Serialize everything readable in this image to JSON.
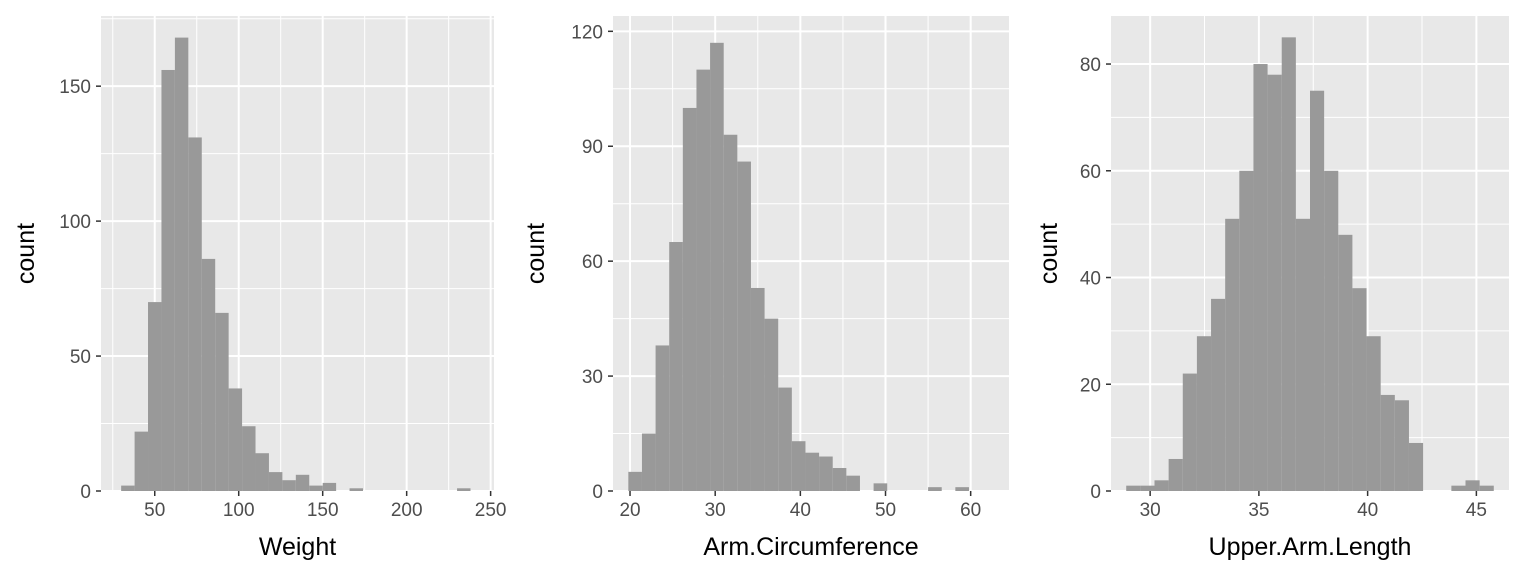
{
  "colors": {
    "panel_background": "#e8e8e8",
    "grid_line": "#ffffff",
    "bar_fill": "#999999",
    "tick_text": "#4d4d4d",
    "axis_title": "#000000"
  },
  "chart_data": [
    {
      "type": "bar",
      "xlabel": "Weight",
      "ylabel": "count",
      "xlim": [
        18,
        252
      ],
      "ylim": [
        0,
        176
      ],
      "xticks": [
        50,
        100,
        150,
        200,
        250
      ],
      "yticks": [
        0,
        50,
        100,
        150
      ],
      "grid": true,
      "bins": [
        {
          "x0": 30,
          "x1": 38,
          "count": 2
        },
        {
          "x0": 38,
          "x1": 46,
          "count": 22
        },
        {
          "x0": 46,
          "x1": 54,
          "count": 70
        },
        {
          "x0": 54,
          "x1": 62,
          "count": 156
        },
        {
          "x0": 62,
          "x1": 70,
          "count": 168
        },
        {
          "x0": 70,
          "x1": 78,
          "count": 131
        },
        {
          "x0": 78,
          "x1": 86,
          "count": 86
        },
        {
          "x0": 86,
          "x1": 94,
          "count": 66
        },
        {
          "x0": 94,
          "x1": 102,
          "count": 38
        },
        {
          "x0": 102,
          "x1": 110,
          "count": 24
        },
        {
          "x0": 110,
          "x1": 118,
          "count": 14
        },
        {
          "x0": 118,
          "x1": 126,
          "count": 7
        },
        {
          "x0": 126,
          "x1": 134,
          "count": 4
        },
        {
          "x0": 134,
          "x1": 142,
          "count": 6
        },
        {
          "x0": 142,
          "x1": 150,
          "count": 2
        },
        {
          "x0": 150,
          "x1": 158,
          "count": 3
        },
        {
          "x0": 166,
          "x1": 174,
          "count": 1
        },
        {
          "x0": 230,
          "x1": 238,
          "count": 1
        }
      ]
    },
    {
      "type": "bar",
      "xlabel": "Arm.Circumference",
      "ylabel": "count",
      "xlim": [
        18,
        64.5
      ],
      "ylim": [
        0,
        124
      ],
      "xticks": [
        20,
        30,
        40,
        50,
        60
      ],
      "yticks": [
        0,
        30,
        60,
        90,
        120
      ],
      "grid": true,
      "bins": [
        {
          "x0": 19.8,
          "x1": 21.4,
          "count": 5
        },
        {
          "x0": 21.4,
          "x1": 23.0,
          "count": 15
        },
        {
          "x0": 23.0,
          "x1": 24.6,
          "count": 38
        },
        {
          "x0": 24.6,
          "x1": 26.2,
          "count": 65
        },
        {
          "x0": 26.2,
          "x1": 27.8,
          "count": 100
        },
        {
          "x0": 27.8,
          "x1": 29.4,
          "count": 110
        },
        {
          "x0": 29.4,
          "x1": 31.0,
          "count": 117
        },
        {
          "x0": 31.0,
          "x1": 32.6,
          "count": 93
        },
        {
          "x0": 32.6,
          "x1": 34.2,
          "count": 86
        },
        {
          "x0": 34.2,
          "x1": 35.8,
          "count": 53
        },
        {
          "x0": 35.8,
          "x1": 37.4,
          "count": 45
        },
        {
          "x0": 37.4,
          "x1": 39.0,
          "count": 27
        },
        {
          "x0": 39.0,
          "x1": 40.6,
          "count": 13
        },
        {
          "x0": 40.6,
          "x1": 42.2,
          "count": 10
        },
        {
          "x0": 42.2,
          "x1": 43.8,
          "count": 9
        },
        {
          "x0": 43.8,
          "x1": 45.4,
          "count": 6
        },
        {
          "x0": 45.4,
          "x1": 47.0,
          "count": 4
        },
        {
          "x0": 48.6,
          "x1": 50.2,
          "count": 2
        },
        {
          "x0": 55.0,
          "x1": 56.6,
          "count": 1
        },
        {
          "x0": 58.2,
          "x1": 59.8,
          "count": 1
        }
      ]
    },
    {
      "type": "bar",
      "xlabel": "Upper.Arm.Length",
      "ylabel": "count",
      "xlim": [
        28.2,
        46.5
      ],
      "ylim": [
        0,
        89
      ],
      "xticks": [
        30,
        35,
        40,
        45
      ],
      "yticks": [
        0,
        20,
        40,
        60,
        80
      ],
      "grid": true,
      "bins": [
        {
          "x0": 28.9,
          "x1": 29.55,
          "count": 1
        },
        {
          "x0": 29.55,
          "x1": 30.2,
          "count": 1
        },
        {
          "x0": 30.2,
          "x1": 30.85,
          "count": 2
        },
        {
          "x0": 30.85,
          "x1": 31.5,
          "count": 6
        },
        {
          "x0": 31.5,
          "x1": 32.15,
          "count": 22
        },
        {
          "x0": 32.15,
          "x1": 32.8,
          "count": 29
        },
        {
          "x0": 32.8,
          "x1": 33.45,
          "count": 36
        },
        {
          "x0": 33.45,
          "x1": 34.1,
          "count": 51
        },
        {
          "x0": 34.1,
          "x1": 34.75,
          "count": 60
        },
        {
          "x0": 34.75,
          "x1": 35.4,
          "count": 80
        },
        {
          "x0": 35.4,
          "x1": 36.05,
          "count": 78
        },
        {
          "x0": 36.05,
          "x1": 36.7,
          "count": 85
        },
        {
          "x0": 36.7,
          "x1": 37.35,
          "count": 51
        },
        {
          "x0": 37.35,
          "x1": 38.0,
          "count": 75
        },
        {
          "x0": 38.0,
          "x1": 38.65,
          "count": 60
        },
        {
          "x0": 38.65,
          "x1": 39.3,
          "count": 48
        },
        {
          "x0": 39.3,
          "x1": 39.95,
          "count": 38
        },
        {
          "x0": 39.95,
          "x1": 40.6,
          "count": 29
        },
        {
          "x0": 40.6,
          "x1": 41.25,
          "count": 18
        },
        {
          "x0": 41.25,
          "x1": 41.9,
          "count": 17
        },
        {
          "x0": 41.9,
          "x1": 42.55,
          "count": 9
        },
        {
          "x0": 43.85,
          "x1": 44.5,
          "count": 1
        },
        {
          "x0": 44.5,
          "x1": 45.15,
          "count": 2
        },
        {
          "x0": 45.15,
          "x1": 45.8,
          "count": 1
        }
      ]
    }
  ]
}
